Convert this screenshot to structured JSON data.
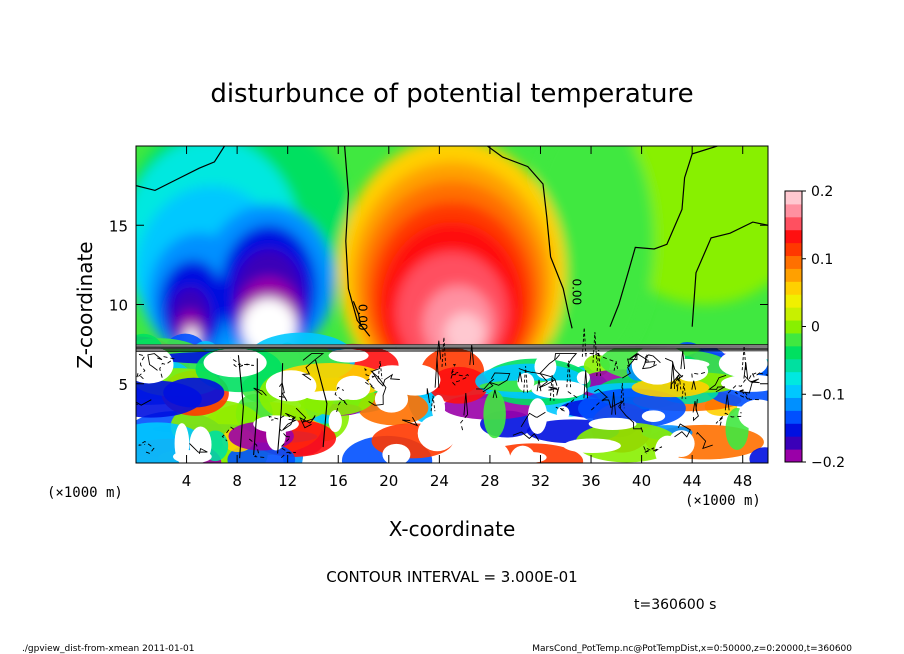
{
  "chart_data": {
    "type": "heatmap",
    "title": "disturbunce of potential temperature",
    "xlabel": "X-coordinate",
    "ylabel": "Z-coordinate",
    "x_unit_left": "(×1000 m)",
    "x_unit_right": "(×1000 m)",
    "xlim": [
      0,
      50
    ],
    "ylim": [
      0,
      20
    ],
    "x_ticks": [
      4,
      8,
      12,
      16,
      20,
      24,
      28,
      32,
      36,
      40,
      44,
      48
    ],
    "y_ticks": [
      5,
      10,
      15
    ],
    "colorbar": {
      "range": [
        -0.2,
        0.2
      ],
      "tick_values": [
        0.2,
        0.1,
        0,
        -0.1,
        -0.2
      ],
      "tick_labels": [
        "0.2",
        "0.1",
        "0",
        "−0.1",
        "−0.2"
      ],
      "colors": [
        "#9a00a8",
        "#3a00b8",
        "#0010e0",
        "#0050ff",
        "#0090ff",
        "#00c8ff",
        "#00e8e0",
        "#00e0a0",
        "#00e060",
        "#40e840",
        "#88f000",
        "#c8f000",
        "#f0f000",
        "#ffd000",
        "#ffa000",
        "#ff7000",
        "#ff3800",
        "#ff1010",
        "#ff5060",
        "#ff90a0",
        "#ffc8d0"
      ]
    },
    "contour_label": "0.00",
    "contour_interval_text": "CONTOUR INTERVAL = 3.000E-01",
    "time_text": "t=360600 s"
  },
  "footer": {
    "left": "./gpview_dist-from-xmean  2011-01-01",
    "right": "MarsCond_PotTemp.nc@PotTempDist,x=0:50000,z=0:20000,t=360600"
  }
}
